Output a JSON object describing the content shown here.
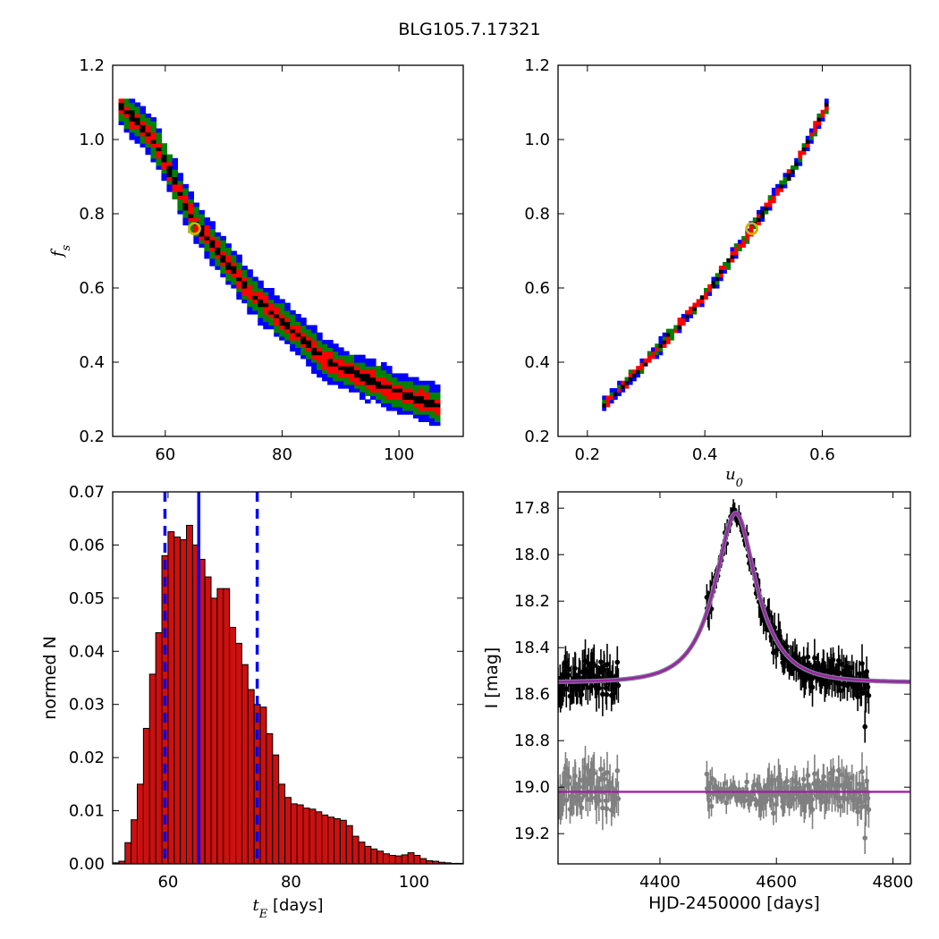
{
  "figure_title": "BLG105.7.17321",
  "colors": {
    "blue": "#0000ff",
    "green": "#008000",
    "red": "#ff0000",
    "black": "#000000",
    "marker": "#c8b400",
    "hist_fill": "#cc1010",
    "model": "#a020a0",
    "gray": "#808080"
  },
  "chart_data": [
    {
      "type": "heatmap",
      "panel": "top-left",
      "title": "",
      "xlabel": "",
      "ylabel": "f_s",
      "xlim": [
        51,
        111
      ],
      "ylim": [
        0.2,
        1.2
      ],
      "xticks": [
        60,
        80,
        100
      ],
      "yticks": [
        0.2,
        0.4,
        0.6,
        0.8,
        1.0,
        1.2
      ],
      "regions": [
        {
          "name": "3-sigma",
          "color": "#0000ff",
          "halfwidth": 0.055
        },
        {
          "name": "2-sigma",
          "color": "#008000",
          "halfwidth": 0.04
        },
        {
          "name": "1-sigma",
          "color": "#ff0000",
          "halfwidth": 0.022
        },
        {
          "name": "best-region",
          "color": "#000000",
          "halfwidth": 0.008
        }
      ],
      "ridge": {
        "x": [
          52,
          58,
          65,
          75,
          88,
          100,
          107
        ],
        "y": [
          1.1,
          1.0,
          0.78,
          0.58,
          0.4,
          0.32,
          0.28
        ]
      },
      "best_fit": {
        "x": 65,
        "y": 0.76
      }
    },
    {
      "type": "heatmap",
      "panel": "top-right",
      "title": "",
      "xlabel": "u_0",
      "ylabel": "",
      "xlim": [
        0.15,
        0.75
      ],
      "ylim": [
        0.2,
        1.2
      ],
      "xticks": [
        0.2,
        0.4,
        0.6
      ],
      "yticks": [
        0.2,
        0.4,
        0.6,
        0.8,
        1.0,
        1.2
      ],
      "regions": [
        {
          "name": "3-sigma",
          "color": "#0000ff",
          "halfwidth": 0.017
        },
        {
          "name": "2-sigma",
          "color": "#008000",
          "halfwidth": 0.013
        },
        {
          "name": "1-sigma",
          "color": "#ff0000",
          "halfwidth": 0.009
        },
        {
          "name": "best-region",
          "color": "#000000",
          "halfwidth": 0.003
        }
      ],
      "ridge": {
        "x": [
          0.225,
          0.3,
          0.4,
          0.48,
          0.55,
          0.61
        ],
        "y": [
          0.28,
          0.4,
          0.58,
          0.76,
          0.92,
          1.1
        ]
      },
      "best_fit": {
        "x": 0.48,
        "y": 0.76
      }
    },
    {
      "type": "bar",
      "panel": "bottom-left",
      "title": "",
      "xlabel": "t_E [days]",
      "ylabel": "normed N",
      "xlim": [
        51,
        108
      ],
      "ylim": [
        0,
        0.07
      ],
      "xticks": [
        60,
        80,
        100
      ],
      "yticks": [
        0.0,
        0.01,
        0.02,
        0.03,
        0.04,
        0.05,
        0.06,
        0.07
      ],
      "bins": {
        "start": 51,
        "width": 1
      },
      "values": [
        0.0002,
        0.0005,
        0.004,
        0.0083,
        0.015,
        0.0255,
        0.0357,
        0.0435,
        0.058,
        0.0625,
        0.0615,
        0.061,
        0.0637,
        0.06,
        0.0573,
        0.054,
        0.05,
        0.0518,
        0.0518,
        0.0445,
        0.0415,
        0.0375,
        0.0328,
        0.03,
        0.0295,
        0.0245,
        0.0205,
        0.015,
        0.0125,
        0.0113,
        0.0111,
        0.0105,
        0.0103,
        0.0098,
        0.0092,
        0.0088,
        0.0085,
        0.0082,
        0.0072,
        0.0052,
        0.0041,
        0.0033,
        0.0028,
        0.0024,
        0.0019,
        0.0016,
        0.0015,
        0.0017,
        0.0021,
        0.0016,
        0.001,
        0.0006,
        0.0005,
        0.0003,
        0.0002,
        0.0001,
        0.0001
      ],
      "vlines": [
        {
          "x": 65.0,
          "style": "solid"
        },
        {
          "x": 59.5,
          "style": "dashed"
        },
        {
          "x": 74.5,
          "style": "dashed"
        }
      ]
    },
    {
      "type": "scatter",
      "panel": "bottom-right",
      "title": "",
      "xlabel": "HJD-2450000 [days]",
      "ylabel": "I [mag]",
      "xlim": [
        4225,
        4830
      ],
      "ylim": [
        19.33,
        17.73
      ],
      "xticks": [
        4400,
        4600,
        4800
      ],
      "yticks": [
        17.8,
        18.0,
        18.2,
        18.4,
        18.6,
        18.8,
        19.0,
        19.2
      ],
      "model": {
        "t0": 4530,
        "tE": 65,
        "u0": 0.48,
        "fs": 0.76,
        "base": 18.55
      },
      "residual_offset": 19.02,
      "seasons": [
        [
          4225,
          4330
        ],
        [
          4480,
          4760
        ]
      ],
      "extra_points": [
        {
          "x": 4752,
          "y": 18.74
        },
        {
          "x": 4757,
          "y": 18.57
        }
      ],
      "series": [
        {
          "name": "",
          "color": "#000000",
          "kind": "data"
        },
        {
          "name": "",
          "color": "#808080",
          "kind": "residuals"
        }
      ]
    }
  ]
}
